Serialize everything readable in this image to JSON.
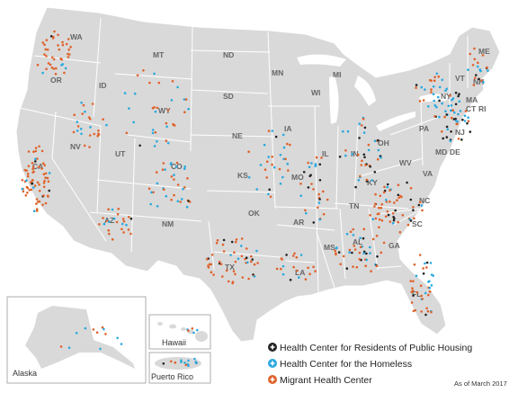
{
  "states": [
    "WA",
    "OR",
    "ID",
    "MT",
    "ND",
    "MN",
    "WI",
    "MI",
    "ME",
    "VT",
    "NH",
    "NY",
    "MA",
    "CT",
    "RI",
    "NJ",
    "PA",
    "MD",
    "DE",
    "OH",
    "IN",
    "IL",
    "IA",
    "SD",
    "NE",
    "WY",
    "NV",
    "CA",
    "UT",
    "CO",
    "KS",
    "MO",
    "KY",
    "WV",
    "VA",
    "TN",
    "NC",
    "SC",
    "GA",
    "AL",
    "MS",
    "AR",
    "LA",
    "TX",
    "OK",
    "NM",
    "AZ",
    "FL"
  ],
  "insets": {
    "alaska": "Alaska",
    "hawaii": "Hawaii",
    "puerto_rico": "Puerto Rico"
  },
  "legend": [
    {
      "label": "Health Center for Residents of Public Housing",
      "color": "#222222",
      "icon": "plus-circle-black-icon"
    },
    {
      "label": "Health Center for the Homeless",
      "color": "#29a8e0",
      "icon": "plus-circle-blue-icon"
    },
    {
      "label": "Migrant Health Center",
      "color": "#e0622a",
      "icon": "plus-circle-orange-icon"
    }
  ],
  "as_of": "As of March 2017",
  "colors": {
    "land": "#d9d9d9",
    "border": "#ffffff",
    "ocean": "#ffffff"
  }
}
